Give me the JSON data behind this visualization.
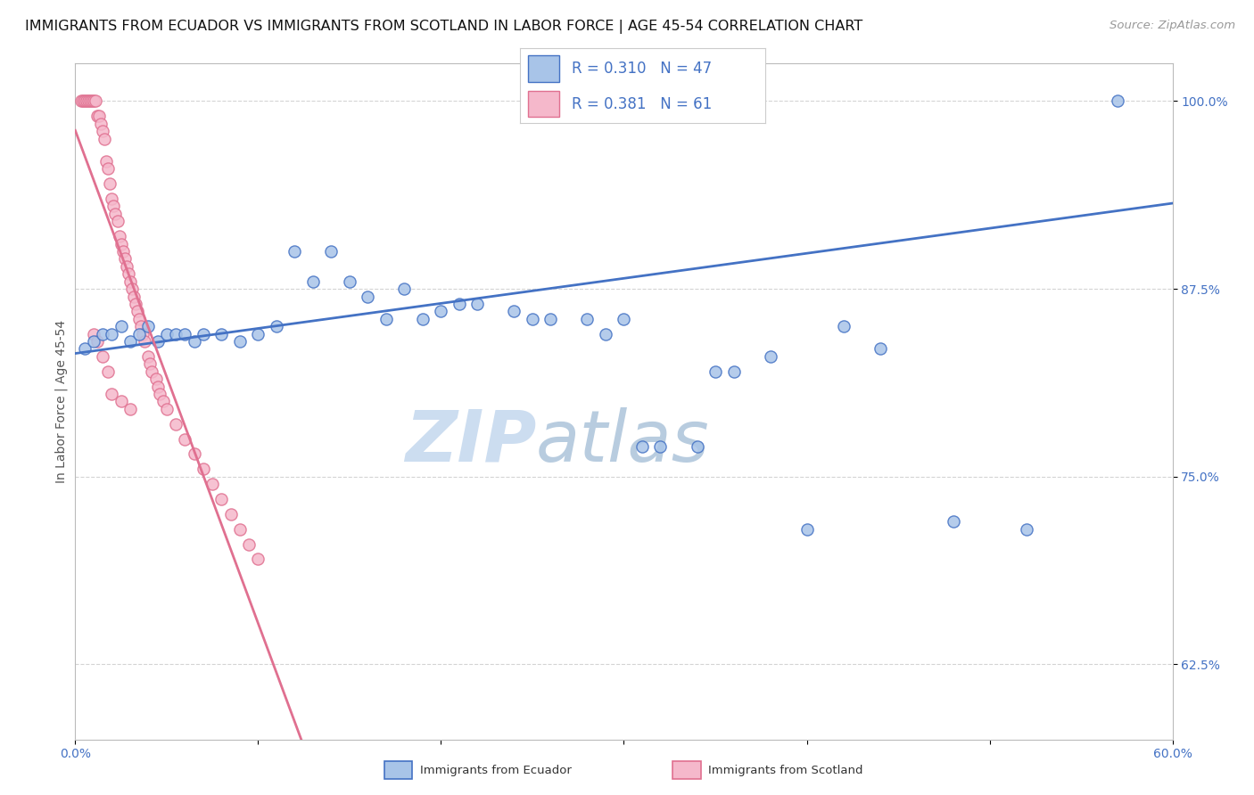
{
  "title": "IMMIGRANTS FROM ECUADOR VS IMMIGRANTS FROM SCOTLAND IN LABOR FORCE | AGE 45-54 CORRELATION CHART",
  "source": "Source: ZipAtlas.com",
  "ylabel": "In Labor Force | Age 45-54",
  "R_ecuador": 0.31,
  "N_ecuador": 47,
  "R_scotland": 0.381,
  "N_scotland": 61,
  "ecuador_fill": "#a8c4e8",
  "ecuador_edge": "#4472c4",
  "scotland_fill": "#f5b8cb",
  "scotland_edge": "#e07090",
  "xlim": [
    0.0,
    0.6
  ],
  "ylim": [
    0.575,
    1.025
  ],
  "yticks": [
    0.625,
    0.75,
    0.875,
    1.0
  ],
  "ytick_labels": [
    "62.5%",
    "75.0%",
    "87.5%",
    "100.0%"
  ],
  "xticks": [
    0.0,
    0.1,
    0.2,
    0.3,
    0.4,
    0.5,
    0.6
  ],
  "xtick_labels": [
    "0.0%",
    "",
    "",
    "",
    "",
    "",
    "60.0%"
  ],
  "background_color": "#ffffff",
  "grid_color": "#d0d0d0",
  "ecuador_x": [
    0.005,
    0.01,
    0.015,
    0.02,
    0.025,
    0.03,
    0.035,
    0.04,
    0.045,
    0.05,
    0.055,
    0.06,
    0.065,
    0.07,
    0.08,
    0.09,
    0.1,
    0.11,
    0.12,
    0.13,
    0.14,
    0.15,
    0.16,
    0.17,
    0.18,
    0.19,
    0.2,
    0.21,
    0.22,
    0.24,
    0.25,
    0.26,
    0.28,
    0.29,
    0.3,
    0.31,
    0.32,
    0.34,
    0.35,
    0.36,
    0.38,
    0.4,
    0.42,
    0.44,
    0.48,
    0.52,
    0.57
  ],
  "ecuador_y": [
    0.835,
    0.84,
    0.845,
    0.845,
    0.85,
    0.84,
    0.845,
    0.85,
    0.84,
    0.845,
    0.845,
    0.845,
    0.84,
    0.845,
    0.845,
    0.84,
    0.845,
    0.85,
    0.9,
    0.88,
    0.9,
    0.88,
    0.87,
    0.855,
    0.875,
    0.855,
    0.86,
    0.865,
    0.865,
    0.86,
    0.855,
    0.855,
    0.855,
    0.845,
    0.855,
    0.77,
    0.77,
    0.77,
    0.82,
    0.82,
    0.83,
    0.715,
    0.85,
    0.835,
    0.72,
    0.715,
    1.0
  ],
  "scotland_x": [
    0.003,
    0.004,
    0.005,
    0.006,
    0.007,
    0.008,
    0.009,
    0.01,
    0.011,
    0.012,
    0.013,
    0.014,
    0.015,
    0.016,
    0.017,
    0.018,
    0.019,
    0.02,
    0.021,
    0.022,
    0.023,
    0.024,
    0.025,
    0.026,
    0.027,
    0.028,
    0.029,
    0.03,
    0.031,
    0.032,
    0.033,
    0.034,
    0.035,
    0.036,
    0.037,
    0.038,
    0.04,
    0.041,
    0.042,
    0.044,
    0.045,
    0.046,
    0.048,
    0.05,
    0.055,
    0.06,
    0.065,
    0.07,
    0.075,
    0.08,
    0.085,
    0.09,
    0.095,
    0.1,
    0.01,
    0.012,
    0.015,
    0.018,
    0.02,
    0.025,
    0.03
  ],
  "scotland_y": [
    1.0,
    1.0,
    1.0,
    1.0,
    1.0,
    1.0,
    1.0,
    1.0,
    1.0,
    0.99,
    0.99,
    0.985,
    0.98,
    0.975,
    0.96,
    0.955,
    0.945,
    0.935,
    0.93,
    0.925,
    0.92,
    0.91,
    0.905,
    0.9,
    0.895,
    0.89,
    0.885,
    0.88,
    0.875,
    0.87,
    0.865,
    0.86,
    0.855,
    0.85,
    0.845,
    0.84,
    0.83,
    0.825,
    0.82,
    0.815,
    0.81,
    0.805,
    0.8,
    0.795,
    0.785,
    0.775,
    0.765,
    0.755,
    0.745,
    0.735,
    0.725,
    0.715,
    0.705,
    0.695,
    0.845,
    0.84,
    0.83,
    0.82,
    0.805,
    0.8,
    0.795
  ],
  "watermark_zip": "ZIP",
  "watermark_atlas": "atlas",
  "watermark_color_zip": "#c8d8ef",
  "watermark_color_atlas": "#c8d8ef",
  "title_fontsize": 11.5,
  "tick_fontsize": 10,
  "source_fontsize": 9.5,
  "ylabel_fontsize": 10,
  "legend_fontsize": 12
}
